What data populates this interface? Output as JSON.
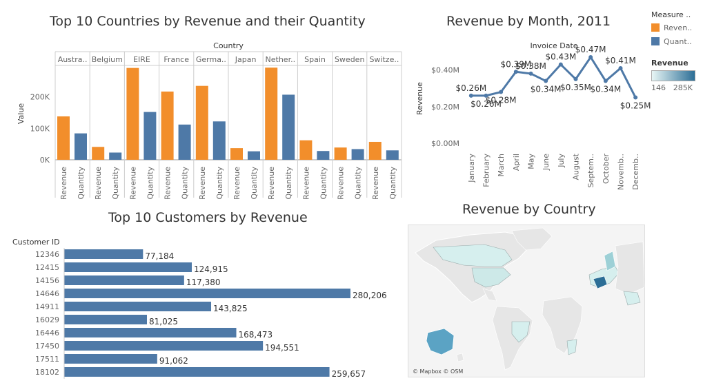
{
  "colors": {
    "revenue": "#f28e2b",
    "quantity": "#4e79a7",
    "axis": "#ccc",
    "text": "#666",
    "map_low": "#d6efee",
    "map_high": "#2c6e96"
  },
  "chart1": {
    "title": "Top 10 Countries by Revenue and their Quantity",
    "header": "Country",
    "ylabel": "Value",
    "yticks": [
      "0K",
      "100K",
      "200K"
    ]
  },
  "chart2": {
    "title": "Revenue by Month, 2011",
    "header": "Invoice Date",
    "ylabel": "Revenue",
    "yticks": [
      "$0.00M",
      "$0.20M",
      "$0.40M"
    ]
  },
  "chart3": {
    "title": "Top 10 Customers by Revenue",
    "header": "Customer ID"
  },
  "chart4": {
    "title": "Revenue by Country",
    "credit": "© Mapbox © OSM"
  },
  "legend": {
    "measure_title": "Measure ..",
    "items": [
      {
        "label": "Reven..",
        "color": "#f28e2b"
      },
      {
        "label": "Quant..",
        "color": "#4e79a7"
      }
    ],
    "revenue_title": "Revenue",
    "range_min": "146",
    "range_max": "285K"
  },
  "chart_data": [
    {
      "type": "bar",
      "title": "Top 10 Countries by Revenue and their Quantity",
      "categories": [
        "Austra..",
        "Belgium",
        "EIRE",
        "France",
        "Germa..",
        "Japan",
        "Nether..",
        "Spain",
        "Sweden",
        "Switze.."
      ],
      "measure_labels": [
        "Revenue",
        "Quantity"
      ],
      "series": [
        {
          "name": "Revenue",
          "values": [
            138000,
            41000,
            292000,
            217000,
            235000,
            37000,
            293000,
            62000,
            39000,
            57000
          ]
        },
        {
          "name": "Quantity",
          "values": [
            84000,
            23000,
            152000,
            112000,
            122000,
            27000,
            207000,
            28000,
            34000,
            30000
          ]
        }
      ],
      "ylabel": "Value",
      "ylim": [
        0,
        300000
      ]
    },
    {
      "type": "line",
      "title": "Revenue by Month, 2011",
      "x": [
        "January",
        "February",
        "March",
        "April",
        "May",
        "June",
        "July",
        "August",
        "Septem..",
        "October",
        "Novemb..",
        "Decemb.."
      ],
      "values": [
        0.26,
        0.26,
        0.28,
        0.39,
        0.38,
        0.34,
        0.43,
        0.35,
        0.47,
        0.34,
        0.41,
        0.25
      ],
      "labels": [
        "$0.26M",
        "$0.26M",
        "$0.28M",
        "$0.39M",
        "$0.38M",
        "$0.34M",
        "$0.43M",
        "$0.35M",
        "$0.47M",
        "$0.34M",
        "$0.41M",
        "$0.25M"
      ],
      "ylabel": "Revenue",
      "ylim": [
        0,
        0.5
      ]
    },
    {
      "type": "bar",
      "title": "Top 10 Customers by Revenue",
      "categories": [
        "12346",
        "12415",
        "14156",
        "14646",
        "14911",
        "16029",
        "16446",
        "17450",
        "17511",
        "18102"
      ],
      "values": [
        77184,
        124915,
        117380,
        280206,
        143825,
        81025,
        168473,
        194551,
        91062,
        259657
      ],
      "labels": [
        "77,184",
        "124,915",
        "117,380",
        "280,206",
        "143,825",
        "81,025",
        "168,473",
        "194,551",
        "91,062",
        "259,657"
      ]
    }
  ]
}
